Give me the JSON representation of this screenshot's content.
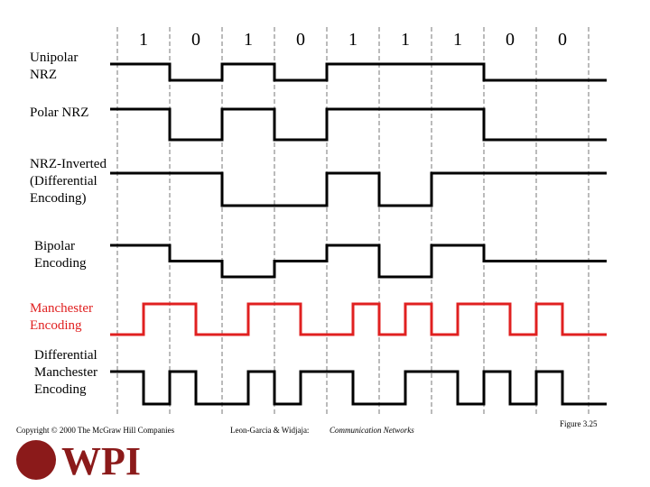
{
  "bits": [
    "1",
    "0",
    "1",
    "0",
    "1",
    "1",
    "1",
    "0",
    "0"
  ],
  "rows": [
    {
      "label": [
        "Unipolar",
        "NRZ"
      ]
    },
    {
      "label": [
        "Polar NRZ"
      ]
    },
    {
      "label": [
        "NRZ-Inverted",
        "(Differential",
        "Encoding)"
      ]
    },
    {
      "label": [
        "Bipolar",
        "Encoding"
      ]
    },
    {
      "label": [
        "Manchester",
        "Encoding"
      ]
    },
    {
      "label": [
        "Differential",
        "Manchester",
        "Encoding"
      ]
    }
  ],
  "footer": {
    "copyright": "Copyright © 2000 The McGraw Hill Companies",
    "authors": "Leon-Garcia & Widjaja:",
    "book": "Communication Networks",
    "figure": "Figure 3.25",
    "logo": "WPI"
  }
}
